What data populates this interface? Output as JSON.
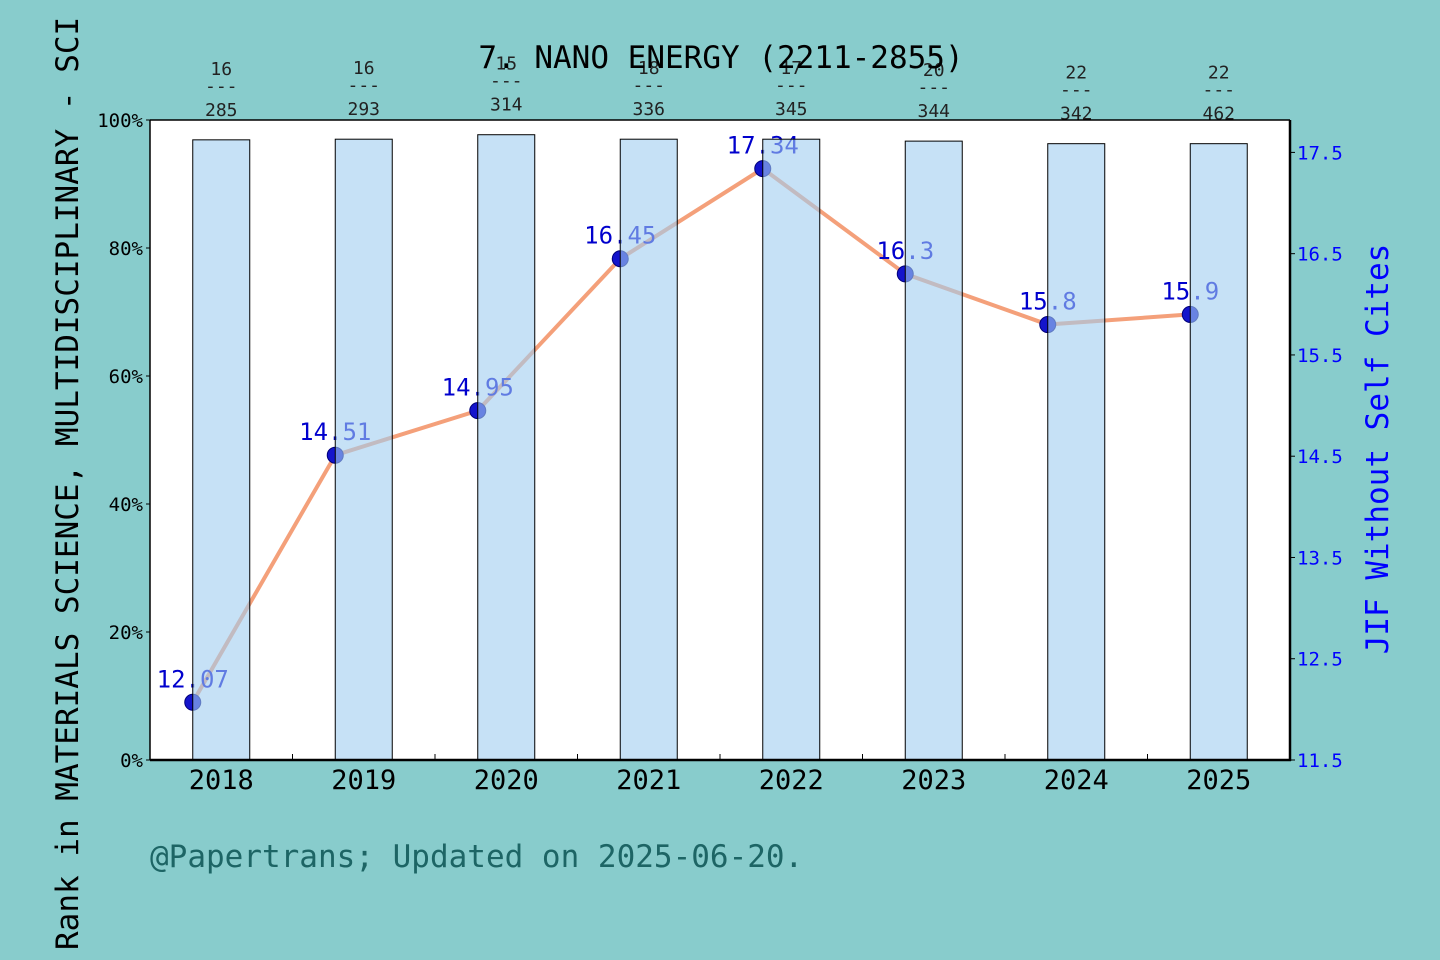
{
  "colors": {
    "background": "#88CCCC",
    "plot_background": "#FFFFFF",
    "text": "#000000",
    "rank_label": "#222222",
    "right_axis": "#0000FF",
    "footer": "#1D6565"
  },
  "footer": {
    "text": "@Papertrans; Updated on 2025-06-20."
  },
  "chart_data": {
    "type": "bar",
    "title": "7. NANO ENERGY (2211-2855)",
    "categories": [
      "2018",
      "2019",
      "2020",
      "2021",
      "2022",
      "2023",
      "2024",
      "2025"
    ],
    "ylabel_left": "Rank in MATERIALS SCIENCE, MULTIDISCIPLINARY - SCI",
    "ylabel_right": "JIF Without Self Cites",
    "ylim_left": [
      0,
      100
    ],
    "yticks_left": [
      0,
      20,
      40,
      60,
      80,
      100
    ],
    "ytick_labels_left": [
      "0%",
      "20%",
      "40%",
      "60%",
      "80%",
      "100%"
    ],
    "ylim_right": [
      11.5,
      17.82
    ],
    "yticks_right": [
      11.5,
      12.5,
      13.5,
      14.5,
      15.5,
      16.5,
      17.5
    ],
    "grid": false,
    "series": [
      {
        "type": "bar",
        "axis": "left",
        "values": [
          96.9,
          97.0,
          97.7,
          97.0,
          97.0,
          96.7,
          96.3,
          96.3
        ],
        "rank": [
          16,
          16,
          15,
          18,
          17,
          20,
          22,
          22
        ],
        "rank_separator": "---",
        "category_total": [
          285,
          293,
          314,
          336,
          345,
          344,
          342,
          462
        ],
        "color": "#A0CDF0"
      },
      {
        "type": "line",
        "axis": "right",
        "values": [
          12.07,
          14.51,
          14.95,
          16.45,
          17.34,
          16.3,
          15.8,
          15.9
        ],
        "line_color": "#F4A07A",
        "marker_color": "#1414CC",
        "label_color": "#0000CD"
      }
    ]
  }
}
